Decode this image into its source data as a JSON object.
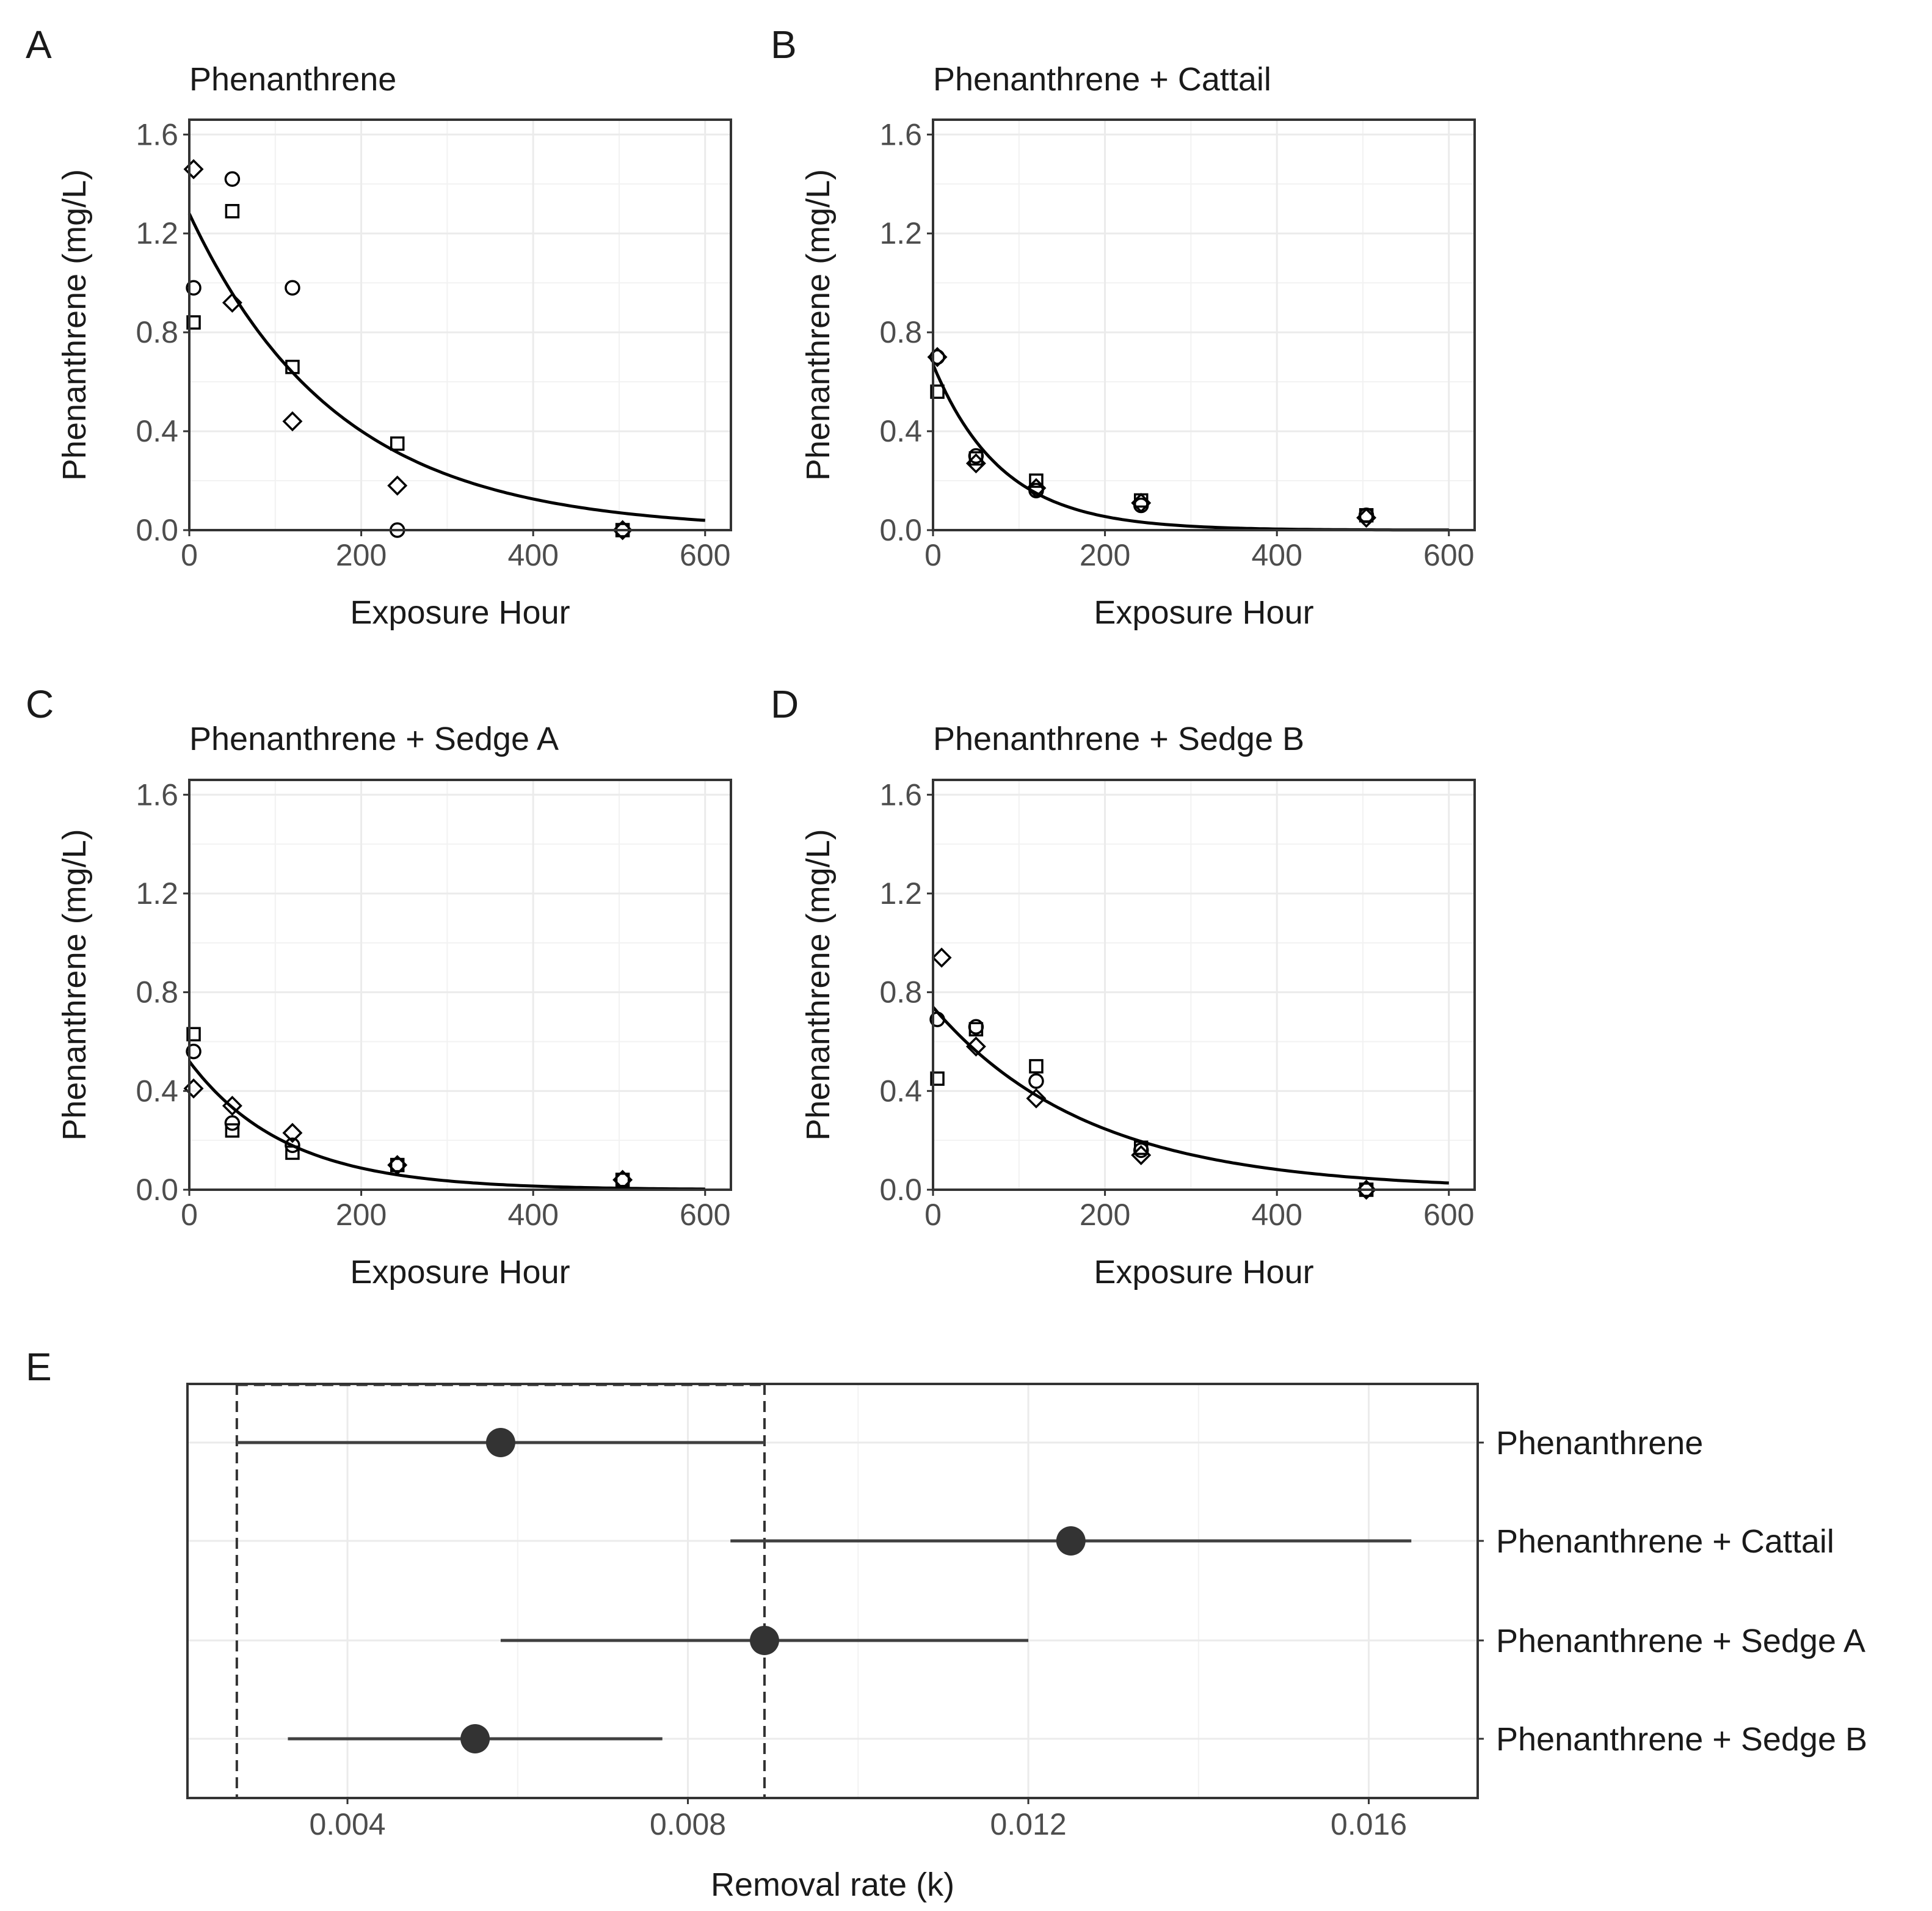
{
  "chart_data": [
    {
      "type": "scatter",
      "panel_label": "A",
      "title": "Phenanthrene",
      "xlabel": "Exposure Hour",
      "ylabel": "Phenanthrene (mg/L)",
      "xlim": [
        0,
        630
      ],
      "ylim": [
        0,
        1.66
      ],
      "xticks": [
        0,
        200,
        400,
        600
      ],
      "yticks": [
        0.0,
        0.4,
        0.8,
        1.2,
        1.6
      ],
      "xtick_labels": [
        "0",
        "200",
        "400",
        "600"
      ],
      "ytick_labels": [
        "0.0",
        "0.4",
        "0.8",
        "1.2",
        "1.6"
      ],
      "grid": true,
      "series": [
        {
          "name": "square",
          "marker": "square",
          "points": [
            [
              5,
              0.84
            ],
            [
              50,
              1.29
            ],
            [
              120,
              0.66
            ],
            [
              242,
              0.35
            ],
            [
              504,
              0.0
            ]
          ]
        },
        {
          "name": "circle",
          "marker": "circle",
          "points": [
            [
              5,
              0.98
            ],
            [
              50,
              1.42
            ],
            [
              120,
              0.98
            ],
            [
              242,
              0.0
            ],
            [
              504,
              0.0
            ]
          ]
        },
        {
          "name": "diamond",
          "marker": "diamond",
          "points": [
            [
              5,
              1.46
            ],
            [
              50,
              0.92
            ],
            [
              120,
              0.44
            ],
            [
              242,
              0.18
            ],
            [
              504,
              0.0
            ]
          ]
        }
      ],
      "fit": {
        "type": "exponential",
        "c0": 1.28,
        "k": 0.0058,
        "x_range": [
          0,
          600
        ]
      }
    },
    {
      "type": "scatter",
      "panel_label": "B",
      "title": "Phenanthrene + Cattail",
      "xlabel": "Exposure Hour",
      "ylabel": "Phenanthrene (mg/L)",
      "xlim": [
        0,
        630
      ],
      "ylim": [
        0,
        1.66
      ],
      "xticks": [
        0,
        200,
        400,
        600
      ],
      "yticks": [
        0.0,
        0.4,
        0.8,
        1.2,
        1.6
      ],
      "xtick_labels": [
        "0",
        "200",
        "400",
        "600"
      ],
      "ytick_labels": [
        "0.0",
        "0.4",
        "0.8",
        "1.2",
        "1.6"
      ],
      "grid": true,
      "series": [
        {
          "name": "square",
          "marker": "square",
          "points": [
            [
              5,
              0.56
            ],
            [
              50,
              0.29
            ],
            [
              120,
              0.2
            ],
            [
              242,
              0.12
            ],
            [
              504,
              0.06
            ]
          ]
        },
        {
          "name": "circle",
          "marker": "circle",
          "points": [
            [
              5,
              0.7
            ],
            [
              50,
              0.3
            ],
            [
              120,
              0.16
            ],
            [
              242,
              0.1
            ],
            [
              504,
              0.06
            ]
          ]
        },
        {
          "name": "diamond",
          "marker": "diamond",
          "points": [
            [
              5,
              0.7
            ],
            [
              50,
              0.27
            ],
            [
              120,
              0.17
            ],
            [
              242,
              0.11
            ],
            [
              504,
              0.05
            ]
          ]
        }
      ],
      "fit": {
        "type": "exponential",
        "c0": 0.67,
        "k": 0.0125,
        "x_range": [
          0,
          600
        ]
      }
    },
    {
      "type": "scatter",
      "panel_label": "C",
      "title": "Phenanthrene + Sedge A",
      "xlabel": "Exposure Hour",
      "ylabel": "Phenanthrene (mg/L)",
      "xlim": [
        0,
        630
      ],
      "ylim": [
        0,
        1.66
      ],
      "xticks": [
        0,
        200,
        400,
        600
      ],
      "yticks": [
        0.0,
        0.4,
        0.8,
        1.2,
        1.6
      ],
      "xtick_labels": [
        "0",
        "200",
        "400",
        "600"
      ],
      "ytick_labels": [
        "0.0",
        "0.4",
        "0.8",
        "1.2",
        "1.6"
      ],
      "grid": true,
      "series": [
        {
          "name": "square",
          "marker": "square",
          "points": [
            [
              5,
              0.63
            ],
            [
              50,
              0.24
            ],
            [
              120,
              0.15
            ],
            [
              242,
              0.1
            ],
            [
              504,
              0.04
            ]
          ]
        },
        {
          "name": "circle",
          "marker": "circle",
          "points": [
            [
              5,
              0.56
            ],
            [
              50,
              0.27
            ],
            [
              120,
              0.18
            ],
            [
              242,
              0.1
            ],
            [
              504,
              0.04
            ]
          ]
        },
        {
          "name": "diamond",
          "marker": "diamond",
          "points": [
            [
              5,
              0.41
            ],
            [
              50,
              0.34
            ],
            [
              120,
              0.23
            ],
            [
              242,
              0.1
            ],
            [
              504,
              0.04
            ]
          ]
        }
      ],
      "fit": {
        "type": "exponential",
        "c0": 0.52,
        "k": 0.0089,
        "x_range": [
          0,
          600
        ]
      }
    },
    {
      "type": "scatter",
      "panel_label": "D",
      "title": "Phenanthrene + Sedge B",
      "xlabel": "Exposure Hour",
      "ylabel": "Phenanthrene (mg/L)",
      "xlim": [
        0,
        630
      ],
      "ylim": [
        0,
        1.66
      ],
      "xticks": [
        0,
        200,
        400,
        600
      ],
      "yticks": [
        0.0,
        0.4,
        0.8,
        1.2,
        1.6
      ],
      "xtick_labels": [
        "0",
        "200",
        "400",
        "600"
      ],
      "ytick_labels": [
        "0.0",
        "0.4",
        "0.8",
        "1.2",
        "1.6"
      ],
      "grid": true,
      "series": [
        {
          "name": "square",
          "marker": "square",
          "points": [
            [
              5,
              0.45
            ],
            [
              50,
              0.65
            ],
            [
              120,
              0.5
            ],
            [
              242,
              0.17
            ],
            [
              504,
              0.0
            ]
          ]
        },
        {
          "name": "circle",
          "marker": "circle",
          "points": [
            [
              5,
              0.69
            ],
            [
              50,
              0.66
            ],
            [
              120,
              0.44
            ],
            [
              242,
              0.16
            ],
            [
              504,
              0.0
            ]
          ]
        },
        {
          "name": "diamond",
          "marker": "diamond",
          "points": [
            [
              10,
              0.94
            ],
            [
              50,
              0.58
            ],
            [
              120,
              0.37
            ],
            [
              242,
              0.14
            ],
            [
              504,
              0.0
            ]
          ]
        }
      ],
      "fit": {
        "type": "exponential",
        "c0": 0.74,
        "k": 0.0055,
        "x_range": [
          0,
          600
        ]
      }
    },
    {
      "type": "dot-and-interval",
      "panel_label": "E",
      "xlabel": "Removal rate (k)",
      "xlim": [
        0.00212,
        0.01728
      ],
      "xticks": [
        0.004,
        0.008,
        0.012,
        0.016
      ],
      "xtick_labels": [
        "0.004",
        "0.008",
        "0.012",
        "0.016"
      ],
      "grid": true,
      "categories": [
        "Phenanthrene",
        "Phenanthrene + Cattail",
        "Phenanthrene + Sedge A",
        "Phenanthrene + Sedge B"
      ],
      "estimates": [
        0.0058,
        0.0125,
        0.0089,
        0.0055
      ],
      "lower": [
        0.0027,
        0.0085,
        0.0058,
        0.0033
      ],
      "upper": [
        0.0089,
        0.0165,
        0.012,
        0.0077
      ],
      "reference_lines": [
        0.0027,
        0.0089
      ]
    }
  ]
}
